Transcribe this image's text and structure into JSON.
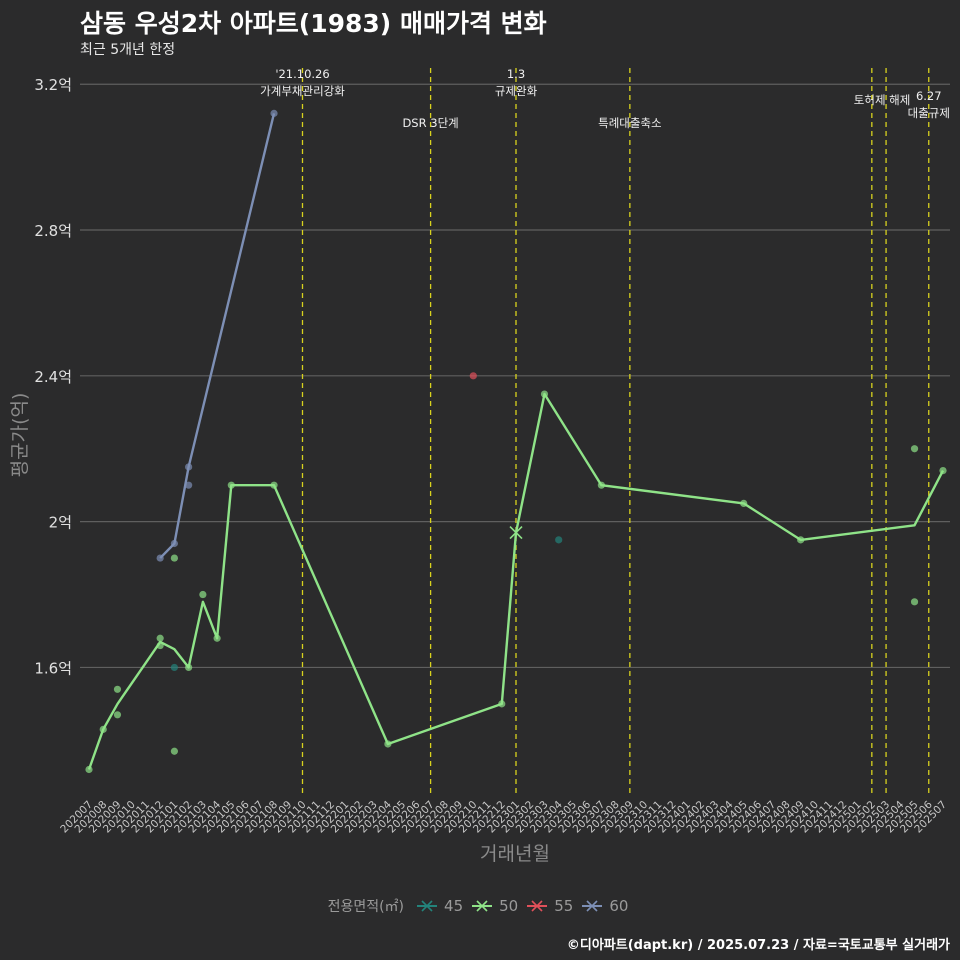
{
  "header": {
    "title": "삼동 우성2차 아파트(1983) 매매가격 변화",
    "subtitle": "최근 5개년 한정"
  },
  "caption": "©디아파트(dapt.kr) / 2025.07.23 / 자료=국토교통부 실거래가",
  "legend": {
    "title": "전용면적(㎡)",
    "items": [
      {
        "label": "45",
        "color": "#23837b"
      },
      {
        "label": "50",
        "color": "#8fe388"
      },
      {
        "label": "55",
        "color": "#e0505a"
      },
      {
        "label": "60",
        "color": "#7d8fb5"
      }
    ]
  },
  "chart_data": {
    "type": "line",
    "title": "삼동 우성2차 아파트(1983) 매매가격 변화",
    "xlabel": "거래년월",
    "ylabel": "평균가(억)",
    "ylim": [
      1.25,
      3.25
    ],
    "yticks": [
      1.6,
      2.0,
      2.4,
      2.8,
      3.2
    ],
    "ytick_labels": [
      "1.6억",
      "2억",
      "2.4억",
      "2.8억",
      "3.2억"
    ],
    "x_categories": [
      "202007",
      "202008",
      "202009",
      "202010",
      "202011",
      "202012",
      "202101",
      "202102",
      "202103",
      "202104",
      "202105",
      "202106",
      "202107",
      "202108",
      "202109",
      "202110",
      "202111",
      "202112",
      "202201",
      "202202",
      "202203",
      "202204",
      "202205",
      "202206",
      "202207",
      "202208",
      "202209",
      "202210",
      "202211",
      "202212",
      "202301",
      "202302",
      "202303",
      "202304",
      "202305",
      "202306",
      "202307",
      "202308",
      "202309",
      "202310",
      "202311",
      "202312",
      "202401",
      "202402",
      "202403",
      "202404",
      "202405",
      "202406",
      "202407",
      "202408",
      "202409",
      "202410",
      "202411",
      "202412",
      "202501",
      "202502",
      "202503",
      "202504",
      "202505",
      "202506",
      "202507"
    ],
    "series": [
      {
        "name": "50",
        "color": "#8fe388",
        "line": [
          {
            "x": "202007",
            "y": 1.32
          },
          {
            "x": "202008",
            "y": 1.43
          },
          {
            "x": "202009",
            "y": 1.5
          },
          {
            "x": "202012",
            "y": 1.67
          },
          {
            "x": "202101",
            "y": 1.65
          },
          {
            "x": "202102",
            "y": 1.6
          },
          {
            "x": "202103",
            "y": 1.78
          },
          {
            "x": "202104",
            "y": 1.68
          },
          {
            "x": "202105",
            "y": 2.1
          },
          {
            "x": "202108",
            "y": 2.1
          },
          {
            "x": "202204",
            "y": 1.39
          },
          {
            "x": "202212",
            "y": 1.5
          },
          {
            "x": "202301",
            "y": 1.97
          },
          {
            "x": "202303",
            "y": 2.35
          },
          {
            "x": "202307",
            "y": 2.1
          },
          {
            "x": "202405",
            "y": 2.05
          },
          {
            "x": "202409",
            "y": 1.95
          },
          {
            "x": "202505",
            "y": 1.99
          },
          {
            "x": "202507",
            "y": 2.14
          }
        ],
        "points": [
          {
            "x": "202007",
            "y": 1.32
          },
          {
            "x": "202008",
            "y": 1.43
          },
          {
            "x": "202009",
            "y": 1.54
          },
          {
            "x": "202009",
            "y": 1.47
          },
          {
            "x": "202012",
            "y": 1.68
          },
          {
            "x": "202012",
            "y": 1.66
          },
          {
            "x": "202101",
            "y": 1.9
          },
          {
            "x": "202101",
            "y": 1.37
          },
          {
            "x": "202102",
            "y": 1.6
          },
          {
            "x": "202103",
            "y": 1.8
          },
          {
            "x": "202104",
            "y": 1.68
          },
          {
            "x": "202105",
            "y": 2.1
          },
          {
            "x": "202108",
            "y": 2.1
          },
          {
            "x": "202204",
            "y": 1.39
          },
          {
            "x": "202212",
            "y": 1.5
          },
          {
            "x": "202303",
            "y": 2.35
          },
          {
            "x": "202307",
            "y": 2.1
          },
          {
            "x": "202405",
            "y": 2.05
          },
          {
            "x": "202409",
            "y": 1.95
          },
          {
            "x": "202505",
            "y": 2.2
          },
          {
            "x": "202505",
            "y": 1.78
          },
          {
            "x": "202507",
            "y": 2.14
          }
        ],
        "cross_marks": [
          {
            "x": "202301",
            "y": 1.97
          }
        ]
      },
      {
        "name": "60",
        "color": "#7d8fb5",
        "line": [
          {
            "x": "202012",
            "y": 1.9
          },
          {
            "x": "202101",
            "y": 1.94
          },
          {
            "x": "202102",
            "y": 2.15
          },
          {
            "x": "202108",
            "y": 3.12
          }
        ],
        "points": [
          {
            "x": "202012",
            "y": 1.9
          },
          {
            "x": "202101",
            "y": 1.94
          },
          {
            "x": "202102",
            "y": 2.15
          },
          {
            "x": "202102",
            "y": 2.1
          },
          {
            "x": "202108",
            "y": 3.12
          }
        ]
      },
      {
        "name": "45",
        "color": "#23837b",
        "points": [
          {
            "x": "202101",
            "y": 1.6
          },
          {
            "x": "202304",
            "y": 1.95
          }
        ]
      },
      {
        "name": "55",
        "color": "#e0505a",
        "points": [
          {
            "x": "202210",
            "y": 2.4
          }
        ]
      }
    ],
    "annotations": [
      {
        "x": "202110",
        "lines": [
          "'21.10.26",
          "가계부채관리강화"
        ],
        "placement": "high"
      },
      {
        "x": "202207",
        "lines": [
          "DSR 3단계"
        ],
        "placement": "low"
      },
      {
        "x": "202301",
        "lines": [
          "1.3",
          "규제완화"
        ],
        "placement": "high"
      },
      {
        "x": "202309",
        "lines": [
          "특례대출축소"
        ],
        "placement": "low"
      },
      {
        "x": "202502",
        "lines": [],
        "placement": "none"
      },
      {
        "x": "202503",
        "lines": [
          "토허제 해제"
        ],
        "placement": "mid"
      },
      {
        "x": "202506",
        "lines": [
          "6.27",
          "대출규제"
        ],
        "placement": "lowest"
      }
    ]
  }
}
